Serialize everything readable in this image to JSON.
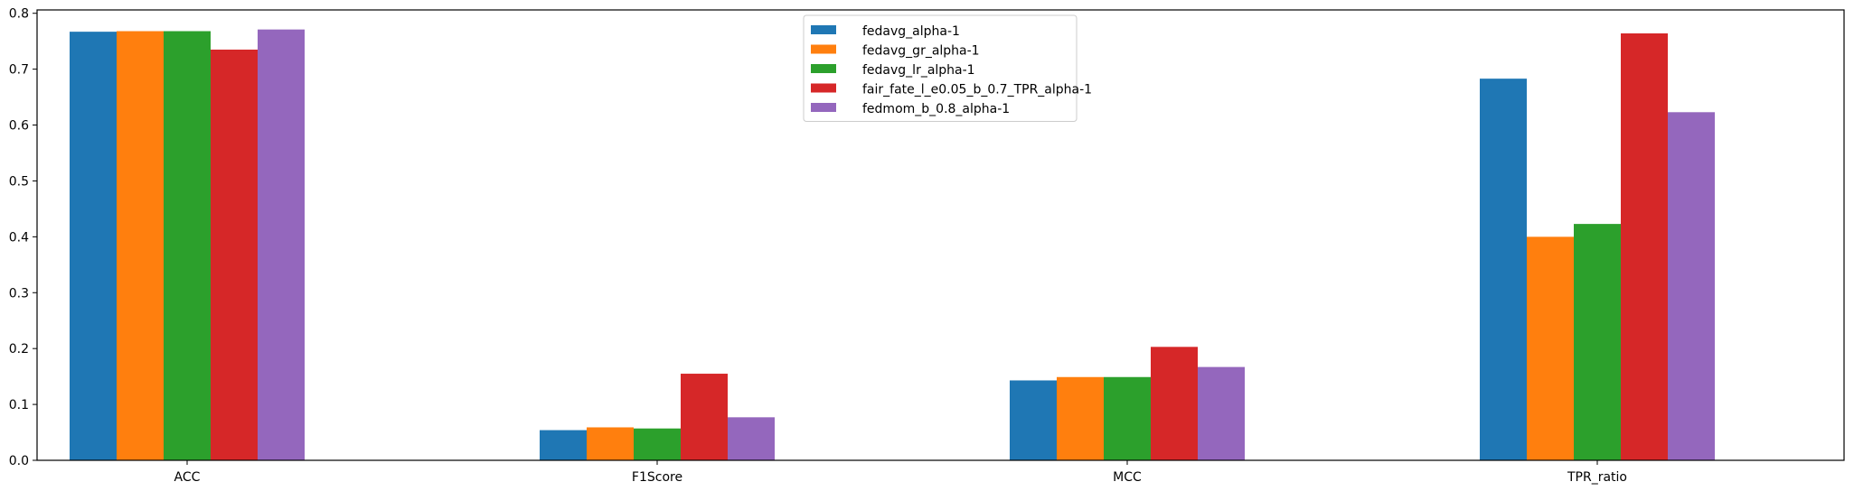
{
  "chart_data": {
    "type": "bar",
    "title": "",
    "xlabel": "",
    "ylabel": "",
    "categories": [
      "ACC",
      "F1Score",
      "MCC",
      "TPR_ratio"
    ],
    "ylim": [
      0,
      0.806
    ],
    "yticks": [
      "0.0",
      "0.1",
      "0.2",
      "0.3",
      "0.4",
      "0.5",
      "0.6",
      "0.7",
      "0.8"
    ],
    "grid": false,
    "legend_position": "top-center",
    "series": [
      {
        "name": "fedavg_alpha-1",
        "color": "#1f77b4",
        "values": [
          0.767,
          0.054,
          0.143,
          0.683
        ]
      },
      {
        "name": "fedavg_gr_alpha-1",
        "color": "#ff7f0e",
        "values": [
          0.768,
          0.059,
          0.149,
          0.4
        ]
      },
      {
        "name": "fedavg_lr_alpha-1",
        "color": "#2ca02c",
        "values": [
          0.768,
          0.057,
          0.149,
          0.423
        ]
      },
      {
        "name": "fair_fate_l_e0.05_b_0.7_TPR_alpha-1",
        "color": "#d62728",
        "values": [
          0.735,
          0.155,
          0.203,
          0.764
        ]
      },
      {
        "name": "fedmom_b_0.8_alpha-1",
        "color": "#9467bd",
        "values": [
          0.771,
          0.077,
          0.167,
          0.623
        ]
      }
    ]
  }
}
